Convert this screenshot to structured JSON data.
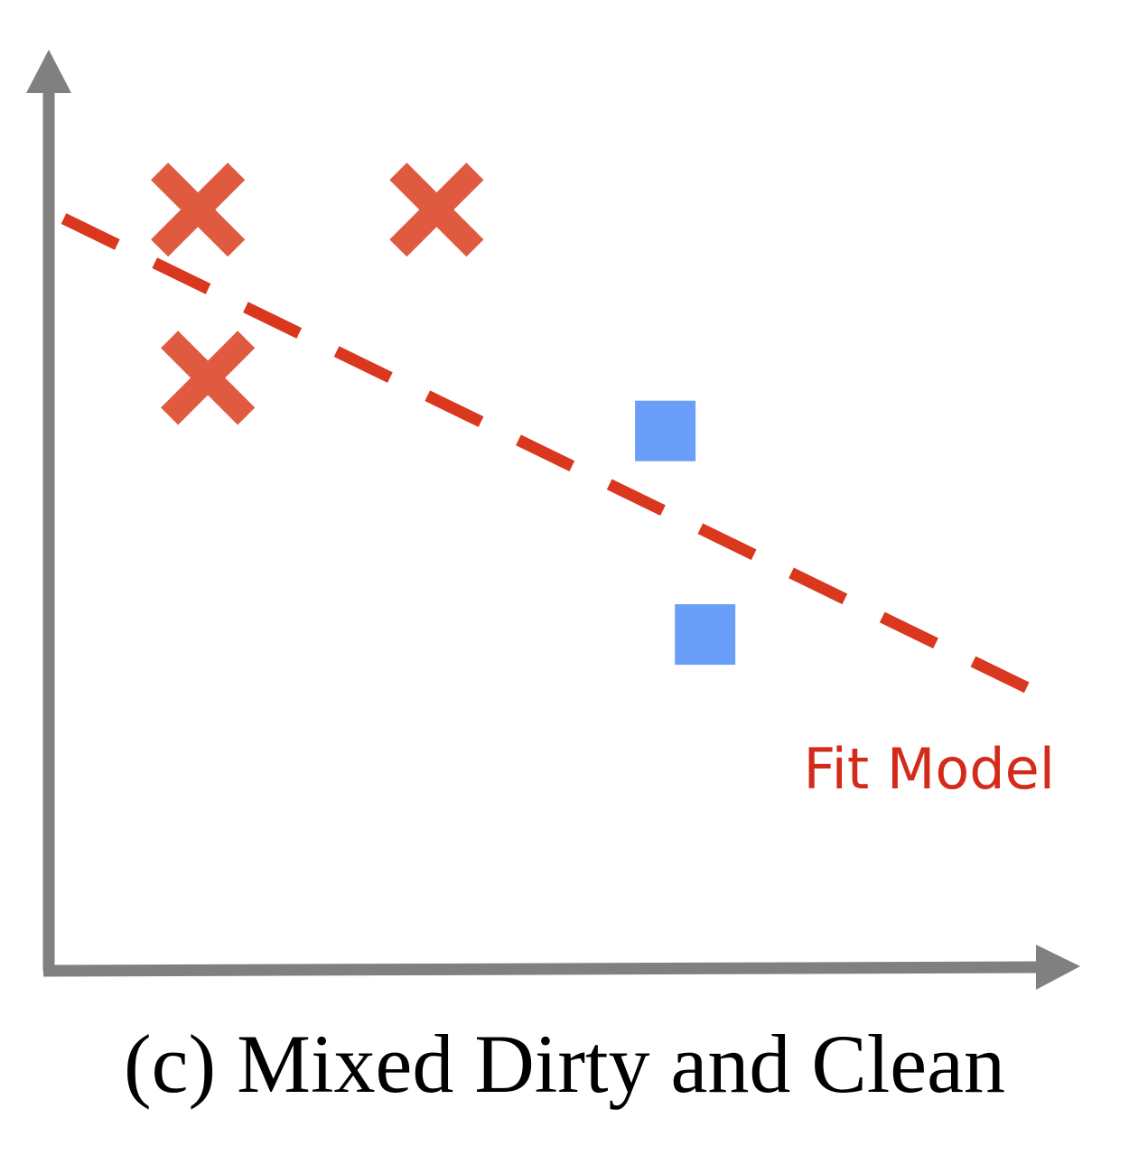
{
  "chart_data": {
    "type": "scatter",
    "title": "",
    "xlabel": "",
    "ylabel": "",
    "xlim": [
      0,
      10
    ],
    "ylim": [
      0,
      10
    ],
    "grid": false,
    "series": [
      {
        "marker": "x",
        "color": "#e05a40",
        "points": [
          [
            1.5,
            8.6
          ],
          [
            3.9,
            8.6
          ],
          [
            1.6,
            6.7
          ]
        ]
      },
      {
        "marker": "square",
        "color": "#6a9ef8",
        "points": [
          [
            6.2,
            6.1
          ],
          [
            6.6,
            3.8
          ]
        ]
      }
    ],
    "fit_line": {
      "label": "Fit Model",
      "color": "#d9381e",
      "style": "dashed",
      "points": [
        [
          0.15,
          8.5
        ],
        [
          10.2,
          3.0
        ]
      ]
    },
    "axis_color": "#808080"
  },
  "caption": "(c) Mixed Dirty and Clean"
}
